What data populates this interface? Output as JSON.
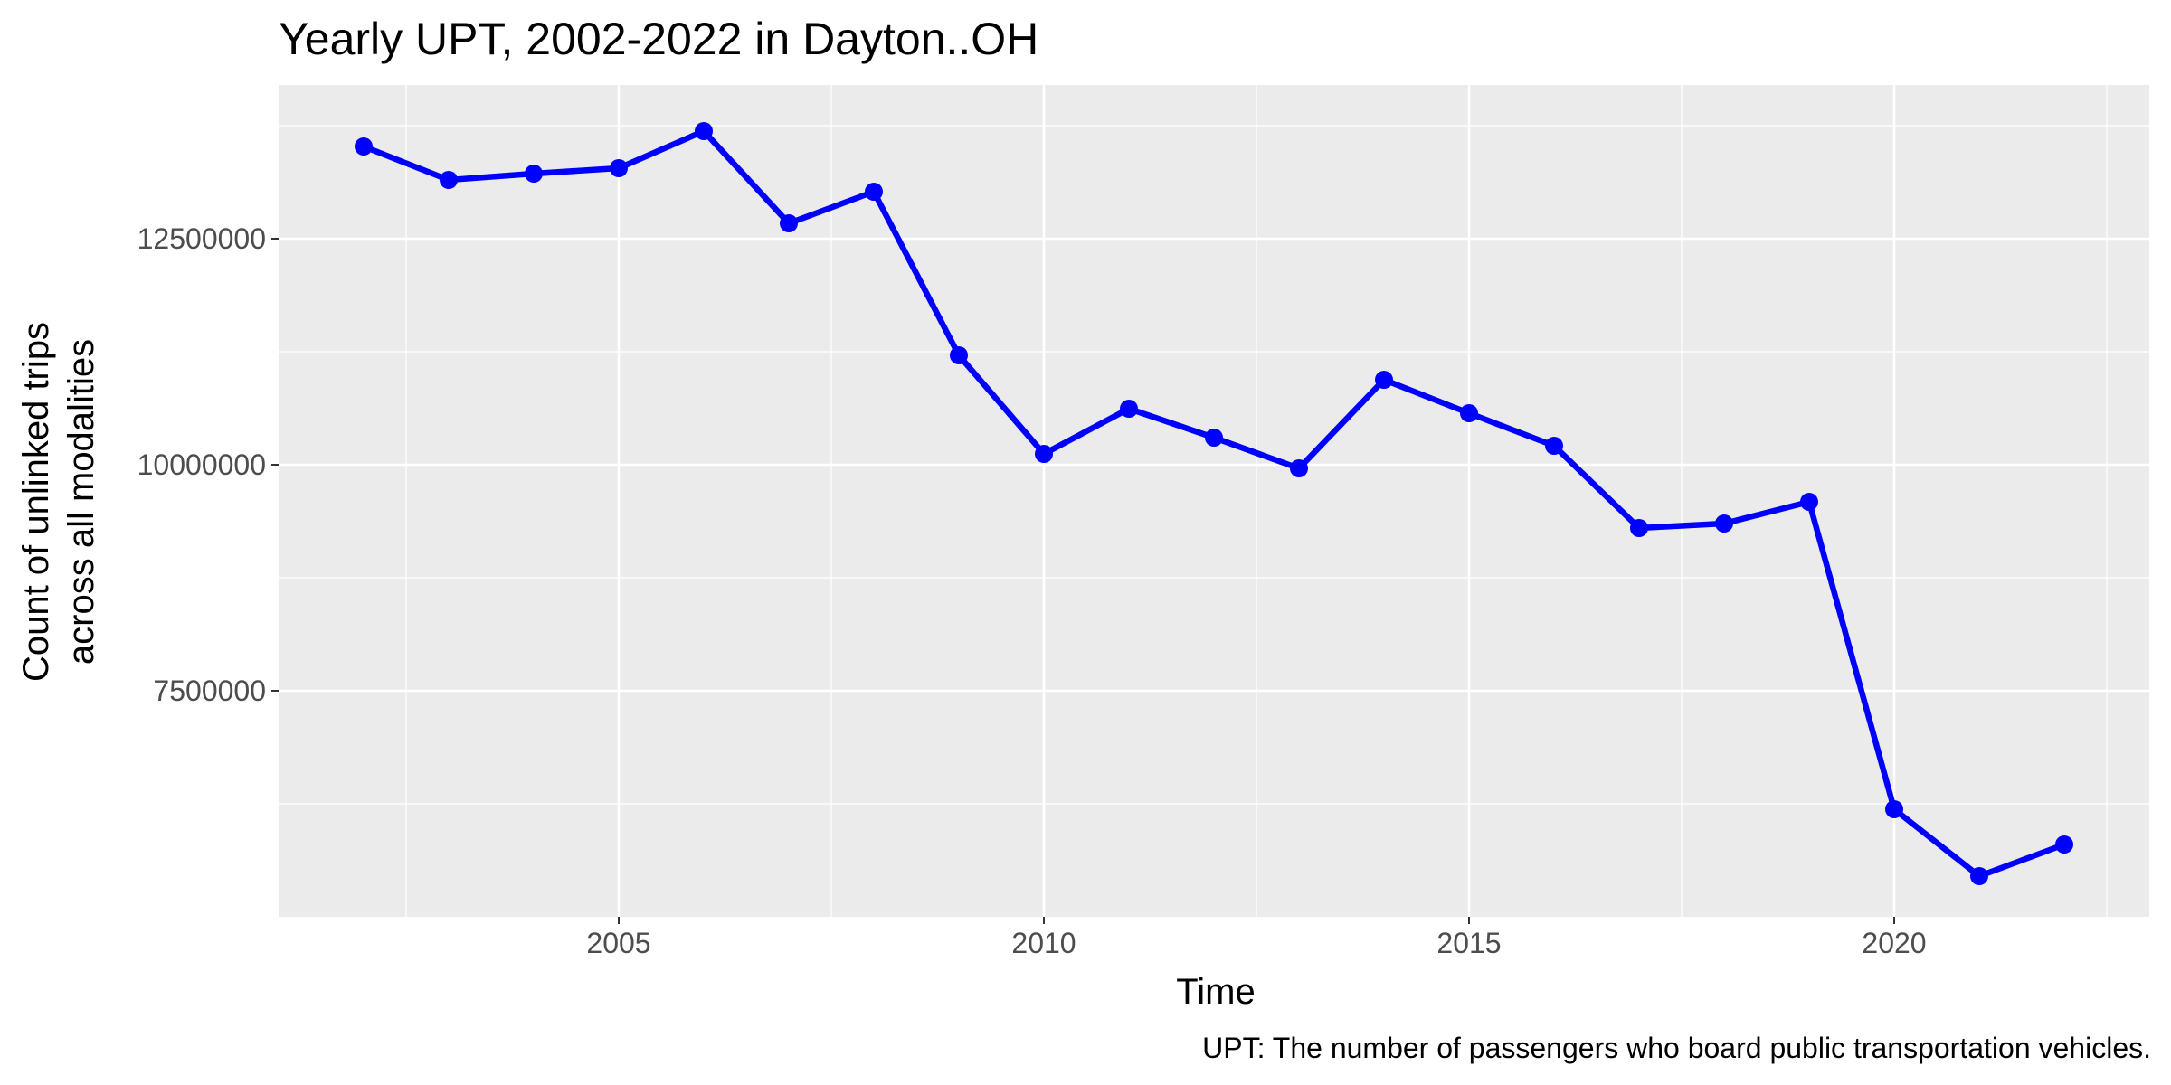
{
  "chart_data": {
    "type": "line",
    "title": "Yearly UPT, 2002-2022 in Dayton..OH",
    "xlabel": "Time",
    "ylabel_lines": [
      "Count of unlinked trips",
      "across all modalities"
    ],
    "caption": "UPT: The number of passengers who board public transportation vehicles.",
    "x": [
      2002,
      2003,
      2004,
      2005,
      2006,
      2007,
      2008,
      2009,
      2010,
      2011,
      2012,
      2013,
      2014,
      2015,
      2016,
      2017,
      2018,
      2019,
      2020,
      2021,
      2022
    ],
    "series": [
      {
        "values": [
          13520000,
          13150000,
          13220000,
          13280000,
          13690000,
          12670000,
          13020000,
          11210000,
          10120000,
          10620000,
          10300000,
          9960000,
          10940000,
          10570000,
          10210000,
          9300000,
          9350000,
          9590000,
          6190000,
          5450000,
          5800000
        ]
      }
    ],
    "xticks": [
      2005,
      2010,
      2015,
      2020
    ],
    "xtick_labels": [
      "2005",
      "2010",
      "2015",
      "2020"
    ],
    "xminor": [
      2002.5,
      2007.5,
      2012.5,
      2017.5,
      2022.5
    ],
    "yticks": [
      7500000,
      10000000,
      12500000
    ],
    "ytick_labels": [
      "7500000",
      "10000000",
      "12500000"
    ],
    "yminor": [
      6250000,
      8750000,
      11250000,
      13750000
    ],
    "xlim": [
      2001,
      2023
    ],
    "ylim": [
      5000000,
      14200000
    ],
    "grid": true,
    "colors": {
      "line": "#0000ff",
      "panel": "#ebebeb",
      "grid": "#ffffff",
      "tick_text": "#4d4d4d",
      "tick_mark": "#333333"
    }
  }
}
